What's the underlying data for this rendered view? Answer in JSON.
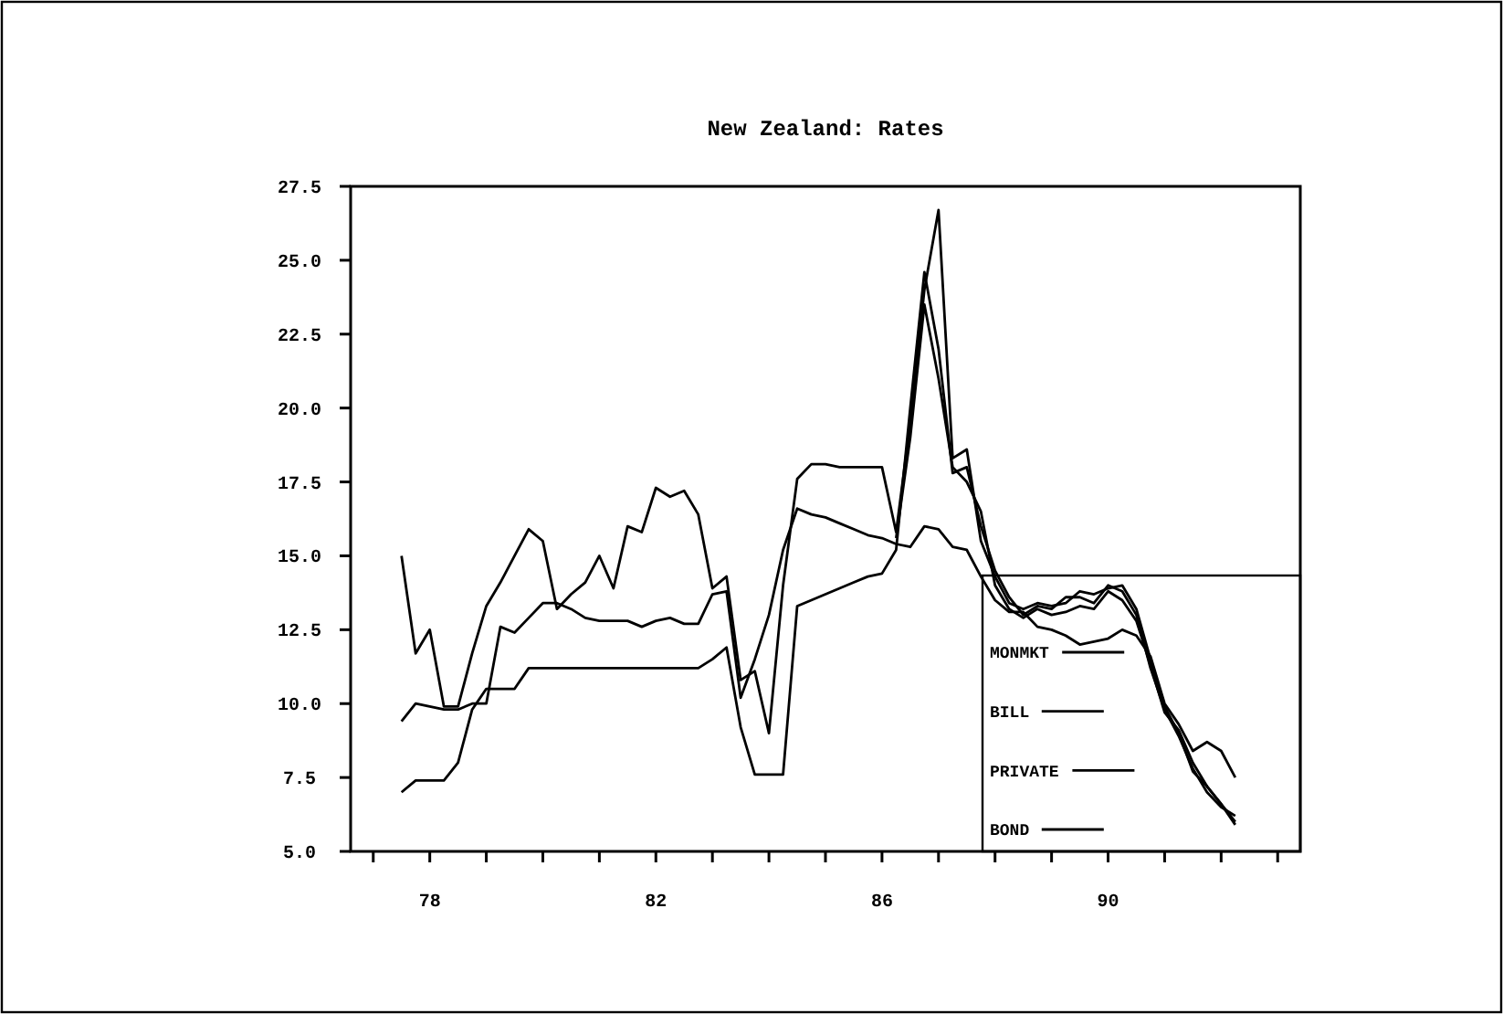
{
  "chart_data": {
    "type": "line",
    "title": "New Zealand: Rates",
    "x": [
      77.5,
      77.75,
      78,
      78.25,
      78.5,
      78.75,
      79,
      79.25,
      79.5,
      79.75,
      80,
      80.25,
      80.5,
      80.75,
      81,
      81.25,
      81.5,
      81.75,
      82,
      82.25,
      82.5,
      82.75,
      83,
      83.25,
      83.5,
      83.75,
      84,
      84.25,
      84.5,
      84.75,
      85,
      85.25,
      85.5,
      85.75,
      86,
      86.25,
      86.5,
      86.75,
      87,
      87.25,
      87.5,
      87.75,
      88,
      88.25,
      88.5,
      88.75,
      89,
      89.25,
      89.5,
      89.75,
      90,
      90.25,
      90.5,
      90.75,
      91,
      91.25,
      91.5,
      91.75,
      92,
      92.25
    ],
    "series": [
      {
        "name": "MONMKT",
        "color": "#000000",
        "values": [
          15.0,
          11.7,
          12.5,
          9.9,
          9.9,
          11.7,
          13.3,
          14.1,
          15.0,
          15.9,
          15.5,
          13.2,
          13.7,
          14.1,
          15.0,
          13.9,
          16.0,
          15.8,
          17.3,
          17.0,
          17.2,
          16.4,
          13.9,
          14.3,
          10.8,
          11.1,
          9.0,
          14.0,
          17.6,
          18.1,
          18.1,
          18.0,
          18.0,
          18.0,
          18.0,
          15.8,
          19.5,
          24.0,
          26.7,
          18.3,
          18.6,
          15.5,
          14.3,
          13.4,
          13.2,
          13.4,
          13.3,
          13.4,
          13.8,
          13.7,
          13.9,
          14.0,
          13.2,
          11.5,
          9.9,
          9.0,
          7.7,
          7.2,
          6.6,
          5.9
        ]
      },
      {
        "name": "BILL",
        "color": "#000000",
        "values": [
          7.0,
          7.4,
          7.4,
          7.4,
          8.0,
          9.8,
          10.5,
          10.5,
          10.5,
          11.2,
          11.2,
          11.2,
          11.2,
          11.2,
          11.2,
          11.2,
          11.2,
          11.2,
          11.2,
          11.2,
          11.2,
          11.2,
          11.5,
          11.9,
          9.2,
          7.6,
          7.6,
          7.6,
          13.3,
          13.5,
          13.7,
          13.9,
          14.1,
          14.3,
          14.4,
          15.2,
          20.0,
          24.6,
          22.0,
          17.8,
          18.0,
          16.0,
          14.5,
          13.6,
          13.0,
          13.3,
          13.2,
          13.6,
          13.6,
          13.4,
          14.0,
          13.8,
          13.0,
          11.2,
          9.8,
          8.9,
          7.8,
          7.0,
          6.5,
          6.2
        ]
      },
      {
        "name": "PRIVATE",
        "color": "#000000",
        "values": [
          null,
          null,
          null,
          null,
          null,
          null,
          null,
          null,
          null,
          null,
          null,
          null,
          null,
          null,
          null,
          null,
          null,
          null,
          null,
          null,
          null,
          null,
          null,
          null,
          null,
          null,
          null,
          null,
          null,
          null,
          null,
          null,
          null,
          null,
          null,
          15.6,
          19.0,
          23.5,
          21.0,
          18.0,
          17.5,
          16.5,
          14.0,
          13.2,
          12.9,
          13.2,
          13.0,
          13.1,
          13.3,
          13.2,
          13.8,
          13.5,
          12.8,
          11.3,
          9.7,
          9.1,
          8.0,
          7.2,
          6.6,
          6.0
        ]
      },
      {
        "name": "BOND",
        "color": "#000000",
        "values": [
          9.4,
          10.0,
          9.9,
          9.8,
          9.8,
          10.0,
          10.0,
          12.6,
          12.4,
          12.9,
          13.4,
          13.4,
          13.2,
          12.9,
          12.8,
          12.8,
          12.8,
          12.6,
          12.8,
          12.9,
          12.7,
          12.7,
          13.7,
          13.8,
          10.2,
          11.5,
          13.0,
          15.2,
          16.6,
          16.4,
          16.3,
          16.1,
          15.9,
          15.7,
          15.6,
          15.4,
          15.3,
          16.0,
          15.9,
          15.3,
          15.2,
          14.3,
          13.5,
          13.1,
          13.1,
          12.6,
          12.5,
          12.3,
          12.0,
          12.1,
          12.2,
          12.5,
          12.3,
          11.6,
          10.0,
          9.3,
          8.4,
          8.7,
          8.4,
          7.5
        ]
      }
    ],
    "xlim": [
      76.6,
      93.4
    ],
    "xticks": [
      {
        "value": 77,
        "label": null
      },
      78,
      {
        "value": 79,
        "label": null
      },
      {
        "value": 80,
        "label": null
      },
      {
        "value": 81,
        "label": null
      },
      82,
      {
        "value": 83,
        "label": null
      },
      {
        "value": 84,
        "label": null
      },
      {
        "value": 85,
        "label": null
      },
      86,
      {
        "value": 87,
        "label": null
      },
      {
        "value": 88,
        "label": null
      },
      {
        "value": 89,
        "label": null
      },
      90,
      {
        "value": 91,
        "label": null
      },
      {
        "value": 92,
        "label": null
      },
      {
        "value": 93,
        "label": null
      }
    ],
    "ylim": [
      5,
      27.5
    ],
    "yticks": [
      {
        "value": 5,
        "label": "5.0"
      },
      {
        "value": 7.5,
        "label": "7.5"
      },
      {
        "value": 10,
        "label": "10.0"
      },
      {
        "value": 12.5,
        "label": "12.5"
      },
      {
        "value": 15,
        "label": "15.0"
      },
      {
        "value": 17.5,
        "label": "17.5"
      },
      {
        "value": 20,
        "label": "20.0"
      },
      {
        "value": 22.5,
        "label": "22.5"
      },
      {
        "value": 25,
        "label": "25.0"
      },
      {
        "value": 27.5,
        "label": "27.5"
      }
    ],
    "grid": false,
    "legend": "bottom right",
    "marker": "none",
    "line_style": "solid"
  }
}
